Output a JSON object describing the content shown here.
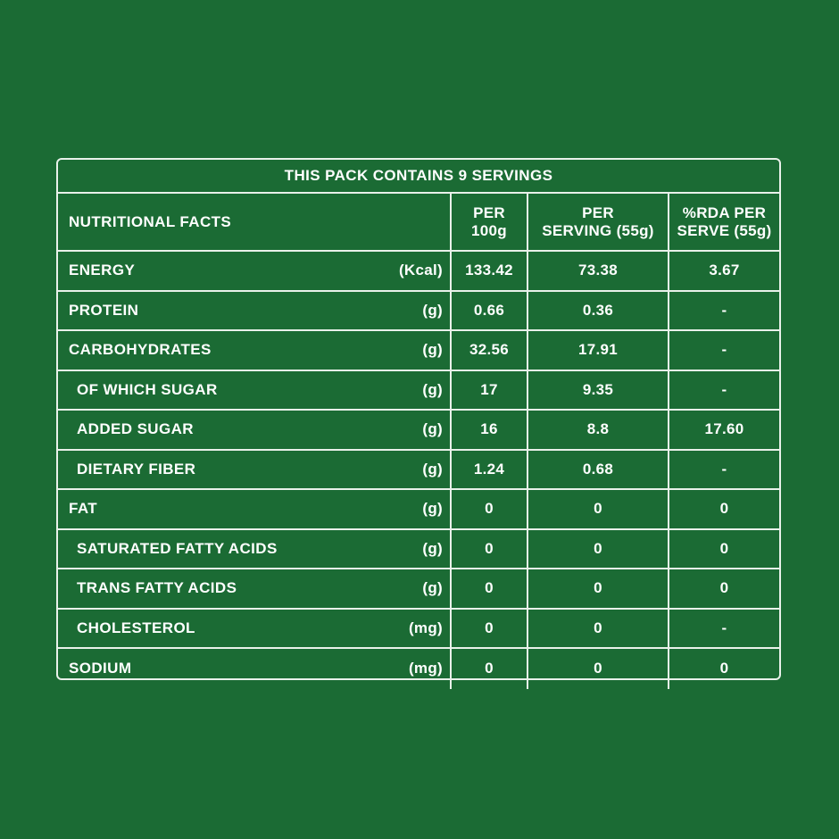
{
  "title": "THIS PACK CONTAINS 9 SERVINGS",
  "header": {
    "name": "NUTRITIONAL FACTS",
    "col1": "PER\n100g",
    "col2": "PER\nSERVING (55g)",
    "col3": "%RDA PER\nSERVE (55g)"
  },
  "rows": [
    {
      "name": "ENERGY",
      "unit": "(Kcal)",
      "per100": "133.42",
      "perServing": "73.38",
      "rda": "3.67"
    },
    {
      "name": "PROTEIN",
      "unit": "(g)",
      "per100": "0.66",
      "perServing": "0.36",
      "rda": "-"
    },
    {
      "name": "CARBOHYDRATES",
      "unit": "(g)",
      "per100": "32.56",
      "perServing": "17.91",
      "rda": "-"
    },
    {
      "name": "OF WHICH SUGAR",
      "unit": "(g)",
      "per100": "17",
      "perServing": "9.35",
      "rda": "-"
    },
    {
      "name": "ADDED SUGAR",
      "unit": "(g)",
      "per100": "16",
      "perServing": "8.8",
      "rda": "17.60"
    },
    {
      "name": "DIETARY FIBER",
      "unit": "(g)",
      "per100": "1.24",
      "perServing": "0.68",
      "rda": "-"
    },
    {
      "name": "FAT",
      "unit": "(g)",
      "per100": "0",
      "perServing": "0",
      "rda": "0"
    },
    {
      "name": "SATURATED FATTY ACIDS",
      "unit": "(g)",
      "per100": "0",
      "perServing": "0",
      "rda": "0"
    },
    {
      "name": "TRANS FATTY ACIDS",
      "unit": "(g)",
      "per100": "0",
      "perServing": "0",
      "rda": "0"
    },
    {
      "name": "CHOLESTEROL",
      "unit": "(mg)",
      "per100": "0",
      "perServing": "0",
      "rda": "-"
    },
    {
      "name": "SODIUM",
      "unit": "(mg)",
      "per100": "0",
      "perServing": "0",
      "rda": "0"
    }
  ],
  "colors": {
    "background": "#1b6b34",
    "lines": "#e9f1ea",
    "text": "#ffffff"
  }
}
